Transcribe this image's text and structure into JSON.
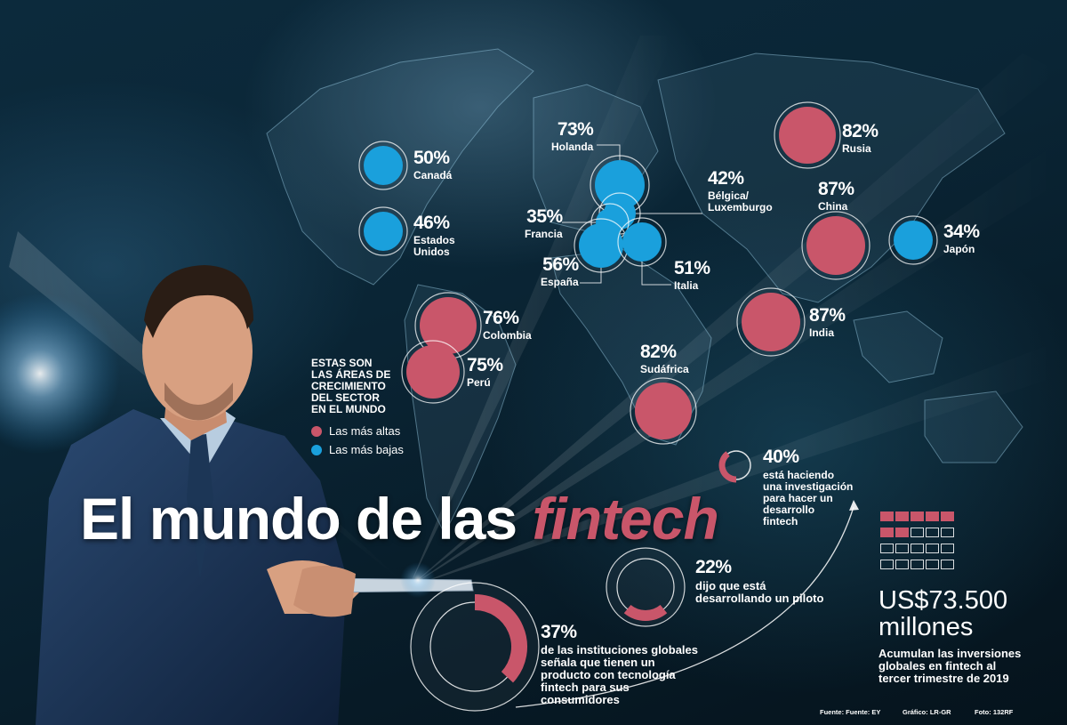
{
  "colors": {
    "high": "#c9566a",
    "low": "#1aa0dc",
    "background": "#0a2535"
  },
  "title": {
    "main": "El mundo de las",
    "highlight": "fintech"
  },
  "legend": {
    "heading": [
      "ESTAS SON",
      "LAS ÁREAS DE",
      "CRECIMIENTO",
      "DEL SECTOR",
      "EN EL MUNDO"
    ],
    "high_label": "Las más altas",
    "low_label": "Las más bajas"
  },
  "countries": [
    {
      "name": "Canadá",
      "pct": "50%",
      "value": 50,
      "group": "low"
    },
    {
      "name": "Estados Unidos",
      "line1": "Estados",
      "line2": "Unidos",
      "pct": "46%",
      "value": 46,
      "group": "low"
    },
    {
      "name": "Holanda",
      "pct": "73%",
      "value": 73,
      "group": "low"
    },
    {
      "name": "Bélgica/ Luxemburgo",
      "line1": "Bélgica/",
      "line2": "Luxemburgo",
      "pct": "42%",
      "value": 42,
      "group": "low"
    },
    {
      "name": "Francia",
      "pct": "35%",
      "value": 35,
      "group": "low"
    },
    {
      "name": "España",
      "pct": "56%",
      "value": 56,
      "group": "low"
    },
    {
      "name": "Italia",
      "pct": "51%",
      "value": 51,
      "group": "low"
    },
    {
      "name": "Rusia",
      "pct": "82%",
      "value": 82,
      "group": "high"
    },
    {
      "name": "China",
      "pct": "87%",
      "value": 87,
      "group": "high"
    },
    {
      "name": "Japón",
      "pct": "34%",
      "value": 34,
      "group": "low"
    },
    {
      "name": "India",
      "pct": "87%",
      "value": 87,
      "group": "high"
    },
    {
      "name": "Colombia",
      "pct": "76%",
      "value": 76,
      "group": "high"
    },
    {
      "name": "Perú",
      "pct": "75%",
      "value": 75,
      "group": "high"
    },
    {
      "name": "Sudáfrica",
      "pct": "82%",
      "value": 82,
      "group": "high"
    }
  ],
  "stats": [
    {
      "pct": "40%",
      "value": 40,
      "lines": [
        "está haciendo",
        "una investigación",
        "para hacer un",
        "desarrollo",
        "fintech"
      ]
    },
    {
      "pct": "22%",
      "value": 22,
      "lines": [
        "dijo que está",
        "desarrollando un piloto"
      ]
    },
    {
      "pct": "37%",
      "value": 37,
      "lines": [
        "de las instituciones globales",
        "señala que tienen un",
        "producto con tecnología",
        "fintech para sus",
        "consumidores"
      ]
    }
  ],
  "investment": {
    "amount": "US$73.500",
    "unit": "millones",
    "lines": [
      "Acumulan las inversiones",
      "globales en fintech al",
      "tercer trimestre de 2019"
    ],
    "filled_squares": 7,
    "total_squares": 20
  },
  "footer": {
    "source": "Fuente: Fuente: EY",
    "graphic": "Gráfico: LR-GR",
    "photo": "Foto: 132RF"
  }
}
